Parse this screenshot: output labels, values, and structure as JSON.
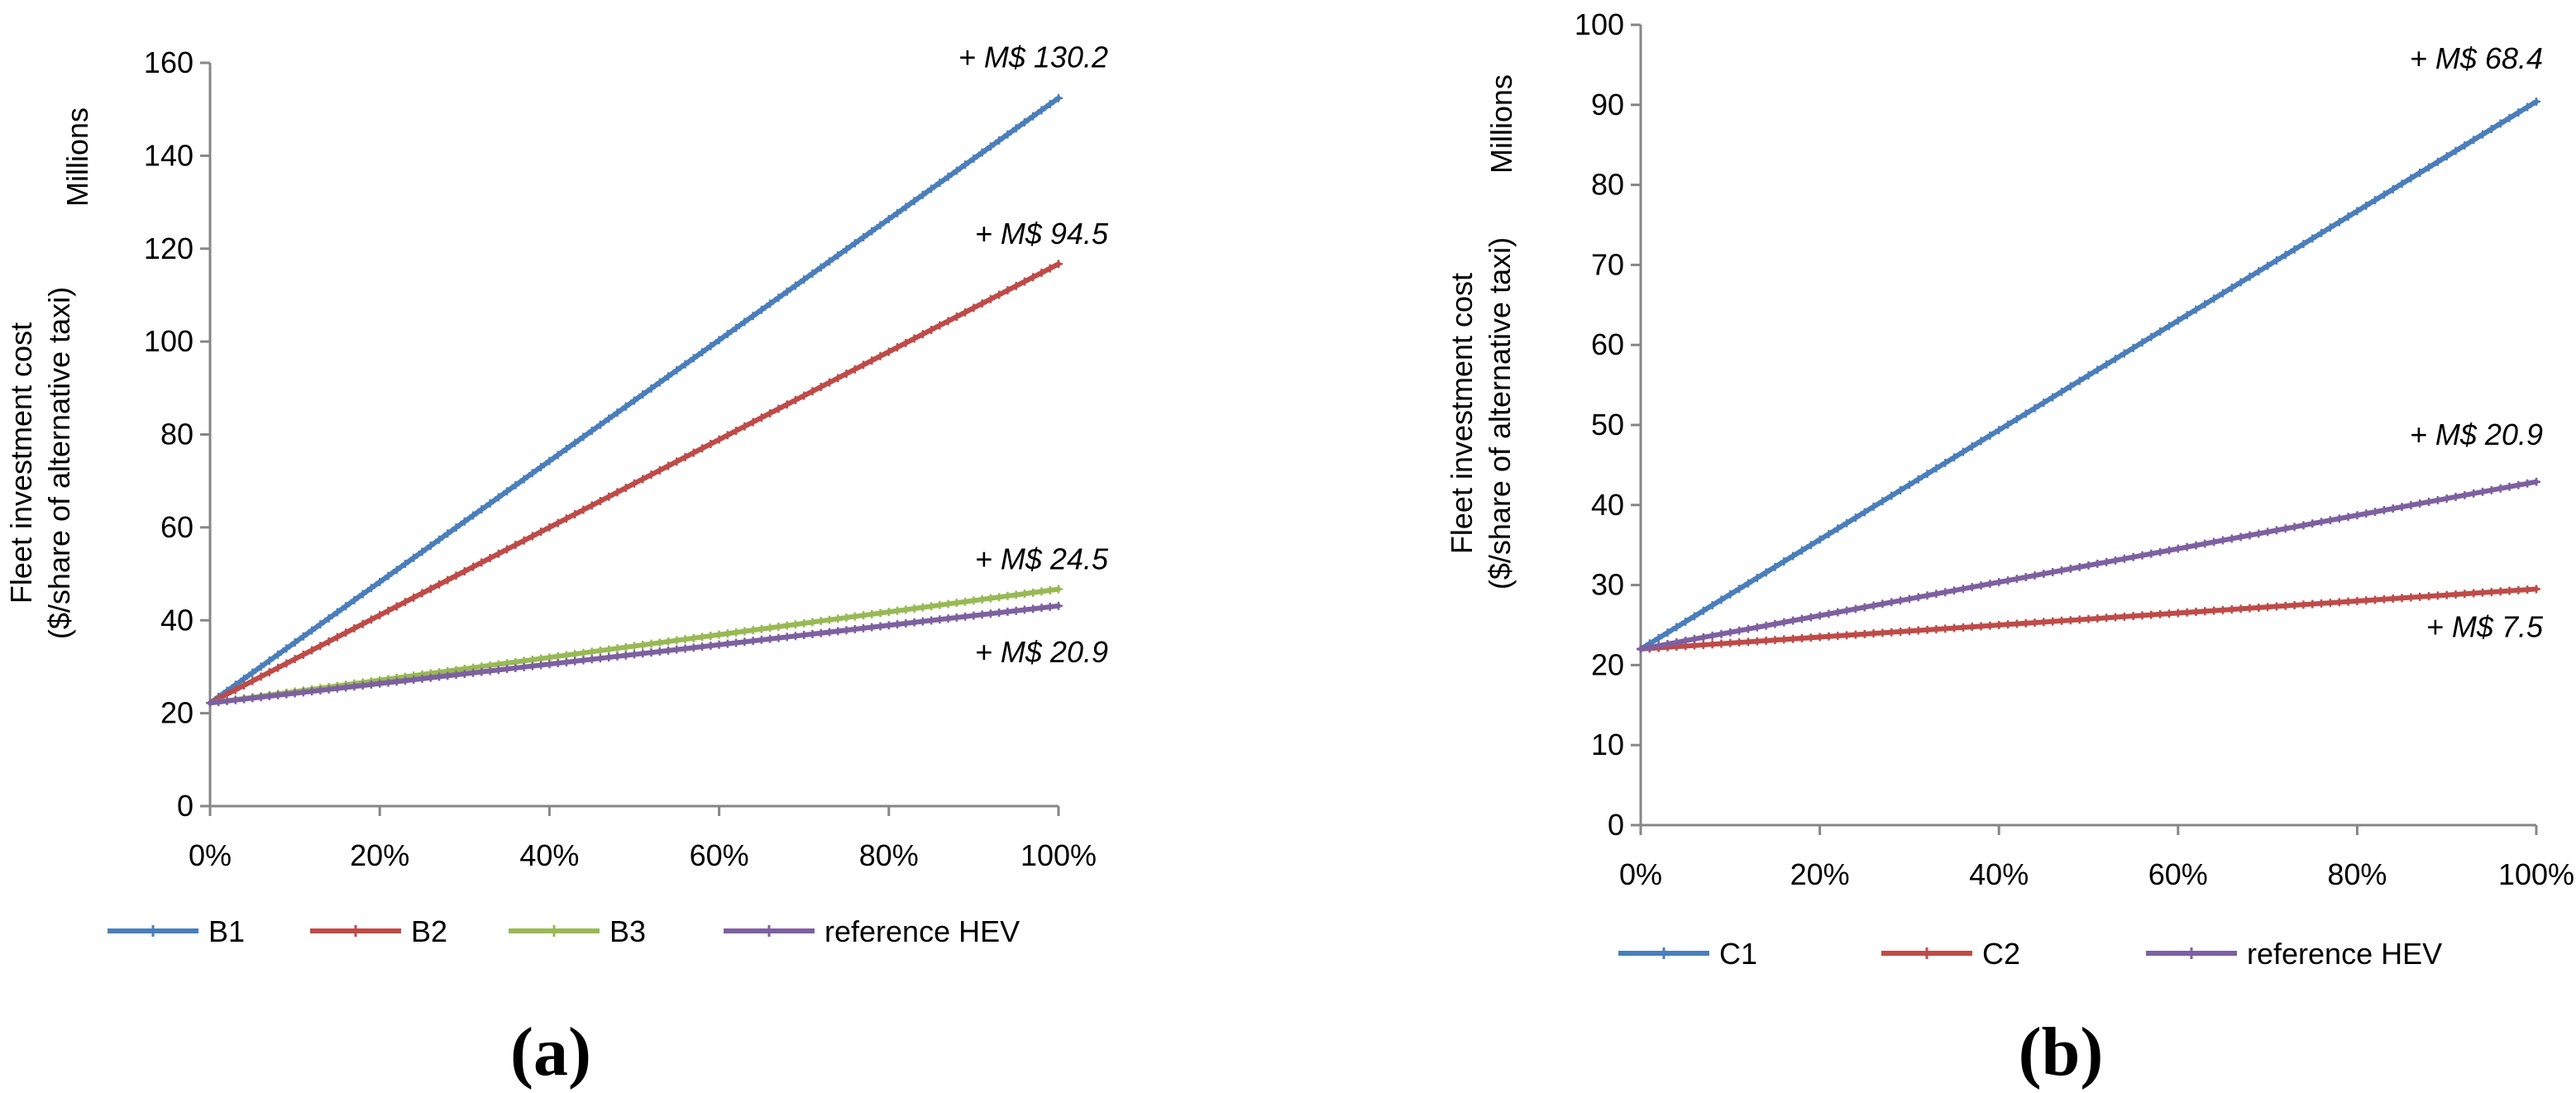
{
  "chart_data": [
    {
      "type": "line",
      "panel_label": "(a)",
      "units_label": "Millions",
      "ylabel_line1": "Fleet investment cost",
      "ylabel_line2": "($/share of alternative taxi)",
      "xlabel": "",
      "x_ticks": [
        "0%",
        "20%",
        "40%",
        "60%",
        "80%",
        "100%"
      ],
      "x": [
        0,
        100
      ],
      "ylim": [
        0,
        160
      ],
      "y_ticks": [
        "0",
        "20",
        "40",
        "60",
        "80",
        "100",
        "120",
        "140",
        "160"
      ],
      "series": [
        {
          "name": "B1",
          "color": "#4a7ebb",
          "values": [
            22.2,
            152.4
          ]
        },
        {
          "name": "B2",
          "color": "#be4b48",
          "values": [
            22.2,
            116.7
          ]
        },
        {
          "name": "B3",
          "color": "#98b954",
          "values": [
            22.2,
            46.7
          ]
        },
        {
          "name": "reference HEV",
          "color": "#7d60a0",
          "values": [
            22.2,
            43.1
          ]
        }
      ],
      "annotations": [
        {
          "text": "+ M$ 130.2",
          "x": 100,
          "y": 159
        },
        {
          "text": "+ M$ 94.5",
          "x": 100,
          "y": 121
        },
        {
          "text": "+ M$ 24.5",
          "x": 100,
          "y": 51
        },
        {
          "text": "+ M$ 20.9",
          "x": 100,
          "y": 31
        }
      ],
      "legend": "bottom"
    },
    {
      "type": "line",
      "panel_label": "(b)",
      "units_label": "Millions",
      "ylabel_line1": "Fleet investment cost",
      "ylabel_line2": "($/share of alternative taxi)",
      "xlabel": "",
      "x_ticks": [
        "0%",
        "20%",
        "40%",
        "60%",
        "80%",
        "100%"
      ],
      "x": [
        0,
        100
      ],
      "ylim": [
        0,
        100
      ],
      "y_ticks": [
        "0",
        "10",
        "20",
        "30",
        "40",
        "50",
        "60",
        "70",
        "80",
        "90",
        "100"
      ],
      "series": [
        {
          "name": "C1",
          "color": "#4a7ebb",
          "values": [
            22.0,
            90.4
          ]
        },
        {
          "name": "C2",
          "color": "#be4b48",
          "values": [
            22.0,
            29.5
          ]
        },
        {
          "name": "reference HEV",
          "color": "#7d60a0",
          "values": [
            22.0,
            42.9
          ]
        }
      ],
      "annotations": [
        {
          "text": "+ M$ 68.4",
          "x": 100,
          "y": 94.5
        },
        {
          "text": "+ M$ 20.9",
          "x": 100,
          "y": 47.5
        },
        {
          "text": "+ M$ 7.5",
          "x": 100,
          "y": 23.5
        }
      ],
      "legend": "bottom"
    }
  ]
}
